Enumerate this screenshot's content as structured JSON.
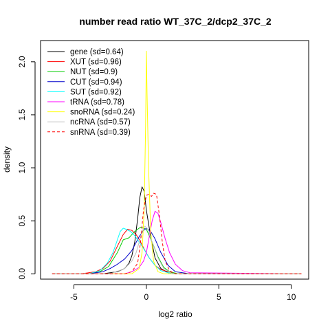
{
  "chart_data": {
    "type": "line",
    "title": "number read ratio WT_37C_2/dcp2_37C_2",
    "xlabel": "log2 ratio",
    "ylabel": "density",
    "xlim": [
      -7.3,
      11.2
    ],
    "ylim": [
      -0.05,
      2.2
    ],
    "x_ticks": [
      -5,
      0,
      5,
      10
    ],
    "x_tick_labels": [
      "-5",
      "0",
      "5",
      "10"
    ],
    "y_ticks": [
      0.0,
      0.5,
      1.0,
      1.5,
      2.0
    ],
    "y_tick_labels": [
      "0.0",
      "0.5",
      "1.0",
      "1.5",
      "2.0"
    ],
    "grid": false,
    "legend_position": "top-left",
    "series": [
      {
        "name": "gene (sd=0.64)",
        "color": "#000000",
        "dash": "solid",
        "x": [
          -6.5,
          -3.0,
          -2.0,
          -1.5,
          -1.2,
          -1.0,
          -0.8,
          -0.6,
          -0.45,
          -0.3,
          -0.15,
          0.0,
          0.3,
          0.6,
          1.0,
          1.5,
          2.0,
          3.0,
          10.7
        ],
        "y": [
          0.0,
          0.0,
          0.02,
          0.05,
          0.1,
          0.17,
          0.3,
          0.52,
          0.72,
          0.82,
          0.78,
          0.6,
          0.35,
          0.15,
          0.05,
          0.01,
          0.0,
          0.0,
          0.0
        ]
      },
      {
        "name": "XUT (sd=0.96)",
        "color": "#ff0000",
        "dash": "solid",
        "x": [
          -6.5,
          -4.5,
          -3.5,
          -3.0,
          -2.5,
          -2.0,
          -1.6,
          -1.3,
          -1.0,
          -0.7,
          -0.4,
          -0.1,
          0.2,
          0.6,
          1.0,
          1.5,
          2.0,
          3.0,
          10.7
        ],
        "y": [
          0.0,
          0.0,
          0.02,
          0.05,
          0.12,
          0.26,
          0.37,
          0.42,
          0.41,
          0.37,
          0.3,
          0.22,
          0.15,
          0.08,
          0.04,
          0.02,
          0.0,
          0.0,
          0.0
        ]
      },
      {
        "name": "NUT (sd=0.9)",
        "color": "#00cc00",
        "dash": "solid",
        "x": [
          -6.5,
          -4.0,
          -3.2,
          -2.6,
          -2.0,
          -1.6,
          -1.2,
          -0.8,
          -0.4,
          0.0,
          0.4,
          0.8,
          1.2,
          1.6,
          2.2,
          3.0,
          10.7
        ],
        "y": [
          0.0,
          0.0,
          0.02,
          0.07,
          0.2,
          0.32,
          0.34,
          0.4,
          0.44,
          0.42,
          0.3,
          0.16,
          0.06,
          0.02,
          0.0,
          0.0,
          0.0
        ]
      },
      {
        "name": "CUT (sd=0.94)",
        "color": "#0000cc",
        "dash": "solid",
        "x": [
          -6.5,
          -4.0,
          -3.0,
          -2.5,
          -2.0,
          -1.5,
          -1.0,
          -0.5,
          -0.2,
          0.0,
          0.3,
          0.6,
          1.0,
          1.5,
          2.0,
          3.0,
          10.7
        ],
        "y": [
          0.0,
          0.0,
          0.02,
          0.05,
          0.09,
          0.14,
          0.22,
          0.35,
          0.41,
          0.43,
          0.4,
          0.33,
          0.2,
          0.08,
          0.02,
          0.0,
          0.0
        ]
      },
      {
        "name": "SUT (sd=0.92)",
        "color": "#00ffff",
        "dash": "solid",
        "x": [
          -6.5,
          -4.0,
          -3.2,
          -2.7,
          -2.3,
          -2.0,
          -1.8,
          -1.6,
          -1.4,
          -1.1,
          -0.8,
          -0.5,
          -0.2,
          0.2,
          0.6,
          1.0,
          1.5,
          2.0,
          3.0,
          10.7
        ],
        "y": [
          0.0,
          0.0,
          0.03,
          0.1,
          0.2,
          0.32,
          0.4,
          0.43,
          0.42,
          0.4,
          0.36,
          0.3,
          0.24,
          0.15,
          0.08,
          0.03,
          0.01,
          0.0,
          0.0,
          0.0
        ]
      },
      {
        "name": "tRNA (sd=0.78)",
        "color": "#ff00ff",
        "dash": "solid",
        "x": [
          -6.5,
          -1.5,
          -1.0,
          -0.5,
          -0.2,
          0.0,
          0.2,
          0.4,
          0.6,
          0.8,
          1.0,
          1.3,
          1.6,
          2.0,
          2.5,
          3.0,
          10.7
        ],
        "y": [
          0.0,
          0.0,
          0.02,
          0.06,
          0.12,
          0.2,
          0.35,
          0.5,
          0.59,
          0.57,
          0.48,
          0.33,
          0.2,
          0.09,
          0.03,
          0.01,
          0.0
        ]
      },
      {
        "name": "snoRNA (sd=0.24)",
        "color": "#ffff00",
        "dash": "solid",
        "x": [
          -6.5,
          -1.0,
          -0.5,
          -0.3,
          -0.15,
          -0.05,
          0.0,
          0.05,
          0.15,
          0.3,
          0.5,
          0.8,
          1.2,
          10.7
        ],
        "y": [
          0.0,
          0.0,
          0.05,
          0.2,
          0.6,
          1.4,
          2.1,
          1.7,
          1.0,
          0.4,
          0.12,
          0.02,
          0.0,
          0.0
        ]
      },
      {
        "name": "ncRNA (sd=0.57)",
        "color": "#c0c0c0",
        "dash": "solid",
        "x": [
          -6.5,
          -2.5,
          -1.5,
          -1.0,
          -0.7,
          -0.5,
          -0.3,
          -0.1,
          0.1,
          0.4,
          0.8,
          1.2,
          1.8,
          10.7
        ],
        "y": [
          0.0,
          0.0,
          0.05,
          0.12,
          0.2,
          0.3,
          0.4,
          0.45,
          0.42,
          0.3,
          0.15,
          0.05,
          0.0,
          0.0
        ]
      },
      {
        "name": "snRNA (sd=0.39)",
        "color": "#ff0000",
        "dash": "dashed",
        "x": [
          -6.5,
          -1.5,
          -1.0,
          -0.6,
          -0.4,
          -0.2,
          0.0,
          0.2,
          0.35,
          0.5,
          0.7,
          0.9,
          1.1,
          1.3,
          1.6,
          2.0,
          10.7
        ],
        "y": [
          0.0,
          0.0,
          0.02,
          0.1,
          0.3,
          0.6,
          0.74,
          0.75,
          0.73,
          0.76,
          0.75,
          0.55,
          0.3,
          0.12,
          0.03,
          0.0,
          0.0
        ]
      }
    ]
  }
}
